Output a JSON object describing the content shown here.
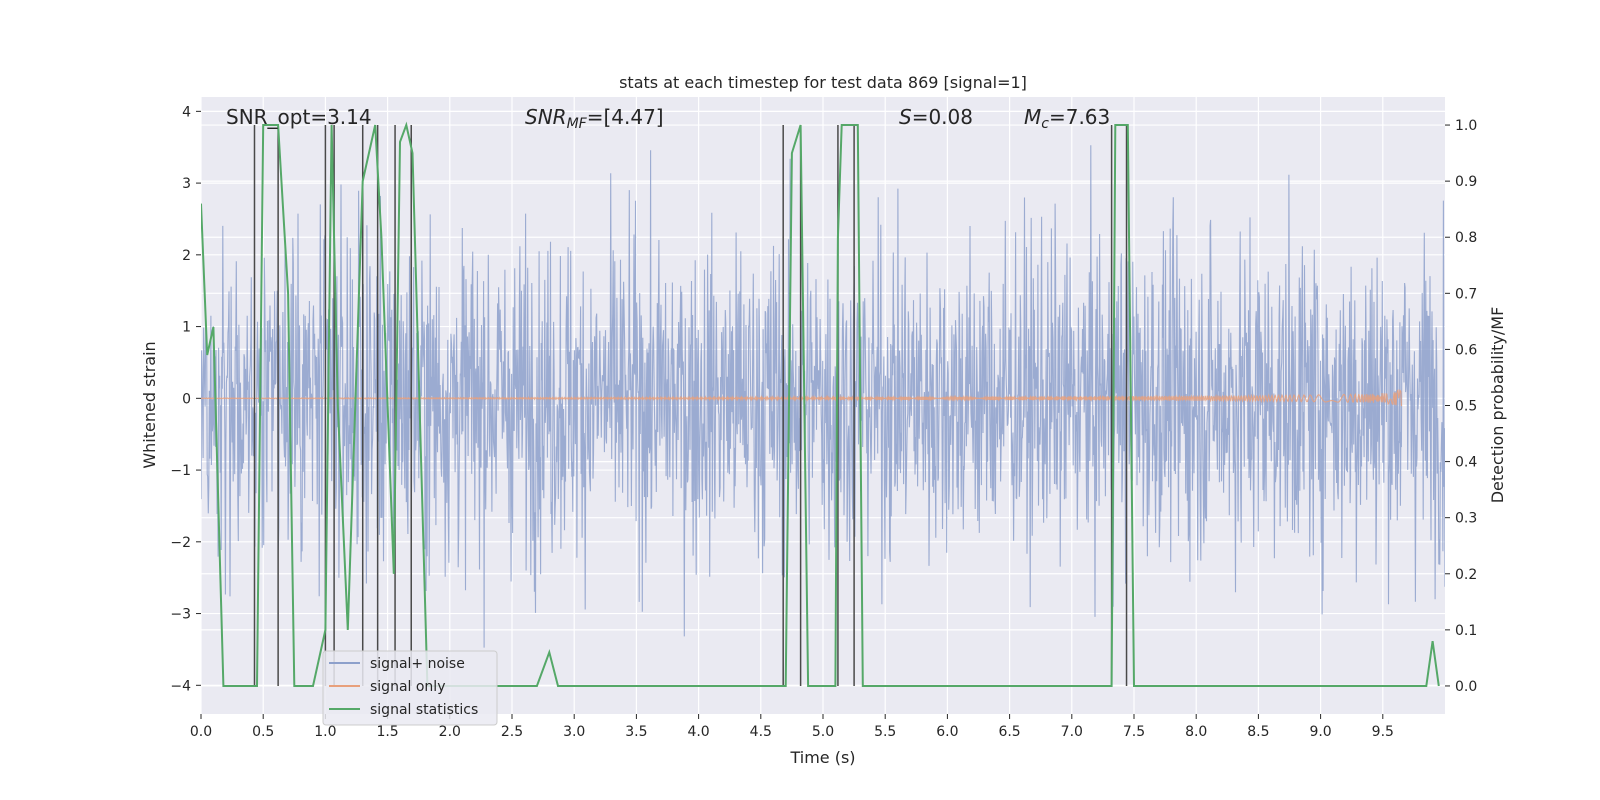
{
  "chart_data": {
    "type": "line",
    "title": "stats at each timestep for test data 869 [signal=1]",
    "xlabel": "Time (s)",
    "ylabel_left": "Whitened strain",
    "ylabel_right": "Detection probability/MF",
    "xlim": [
      0.0,
      10.0
    ],
    "ylim_left": [
      -4.4,
      4.2
    ],
    "ylim_right": [
      -0.05,
      1.05
    ],
    "x_ticks": [
      "0.0",
      "0.5",
      "1.0",
      "1.5",
      "2.0",
      "2.5",
      "3.0",
      "3.5",
      "4.0",
      "4.5",
      "5.0",
      "5.5",
      "6.0",
      "6.5",
      "7.0",
      "7.5",
      "8.0",
      "8.5",
      "9.0",
      "9.5"
    ],
    "y_ticks_left": [
      "−4",
      "−3",
      "−2",
      "−1",
      "0",
      "1",
      "2",
      "3",
      "4"
    ],
    "y_ticks_right": [
      "0.0",
      "0.1",
      "0.2",
      "0.3",
      "0.4",
      "0.5",
      "0.6",
      "0.7",
      "0.8",
      "0.9",
      "1.0"
    ],
    "grid": true,
    "legend_position": "lower-left",
    "annotations": {
      "snr_opt": "SNR_opt=3.14",
      "snr_mf_sym": "SNR",
      "snr_mf_sub": "MF",
      "snr_mf_val": "=[4.47]",
      "s_sym": "S",
      "s_val": "=0.08",
      "mc_sym": "M",
      "mc_sub": "c",
      "mc_val": "=7.63"
    },
    "colors": {
      "signal_noise": "#8da0cb",
      "signal_only": "#e8a07c",
      "statistics": "#55a868",
      "marker_lines": "#4a4a4a",
      "plot_bg": "#eaeaf2"
    },
    "series": [
      {
        "name": "signal+ noise",
        "kind": "noise",
        "std": 1.1,
        "peak_abs": 3.9
      },
      {
        "name": "signal only",
        "kind": "chirp",
        "end_time": 9.65,
        "peak_amplitude": 0.42
      },
      {
        "name": "signal statistics",
        "kind": "line",
        "axis": "right",
        "x": [
          0.0,
          0.05,
          0.1,
          0.18,
          0.43,
          0.45,
          0.5,
          0.62,
          0.7,
          0.75,
          0.9,
          1.0,
          1.05,
          1.1,
          1.18,
          1.3,
          1.4,
          1.45,
          1.55,
          1.6,
          1.65,
          1.7,
          1.82,
          2.5,
          2.6,
          2.7,
          2.8,
          2.87,
          2.9,
          3.5,
          4.0,
          4.7,
          4.75,
          4.82,
          4.88,
          5.0,
          5.1,
          5.12,
          5.15,
          5.28,
          5.32,
          6.0,
          7.0,
          7.32,
          7.35,
          7.45,
          7.5,
          8.0,
          9.0,
          9.5,
          9.85,
          9.9,
          9.95
        ],
        "y": [
          0.86,
          0.59,
          0.64,
          0.0,
          0.0,
          0.0,
          1.0,
          1.0,
          0.7,
          0.0,
          0.0,
          0.1,
          1.0,
          0.5,
          0.1,
          0.9,
          1.0,
          0.8,
          0.2,
          0.97,
          1.0,
          0.95,
          0.0,
          0.0,
          0.0,
          0.0,
          0.06,
          0.0,
          0.0,
          0.0,
          0.0,
          0.0,
          0.95,
          1.0,
          0.0,
          0.0,
          0.0,
          0.8,
          1.0,
          1.0,
          0.0,
          0.0,
          0.0,
          0.0,
          1.0,
          1.0,
          0.0,
          0.0,
          0.0,
          0.0,
          0.0,
          0.08,
          0.0
        ]
      }
    ],
    "marker_times": [
      0.43,
      0.62,
      1.0,
      1.07,
      1.3,
      1.42,
      1.56,
      1.69,
      4.68,
      4.82,
      5.12,
      5.25,
      7.32,
      7.44
    ]
  },
  "legend": {
    "signal_noise": "signal+ noise",
    "signal_only": "signal only",
    "statistics": "signal statistics"
  }
}
